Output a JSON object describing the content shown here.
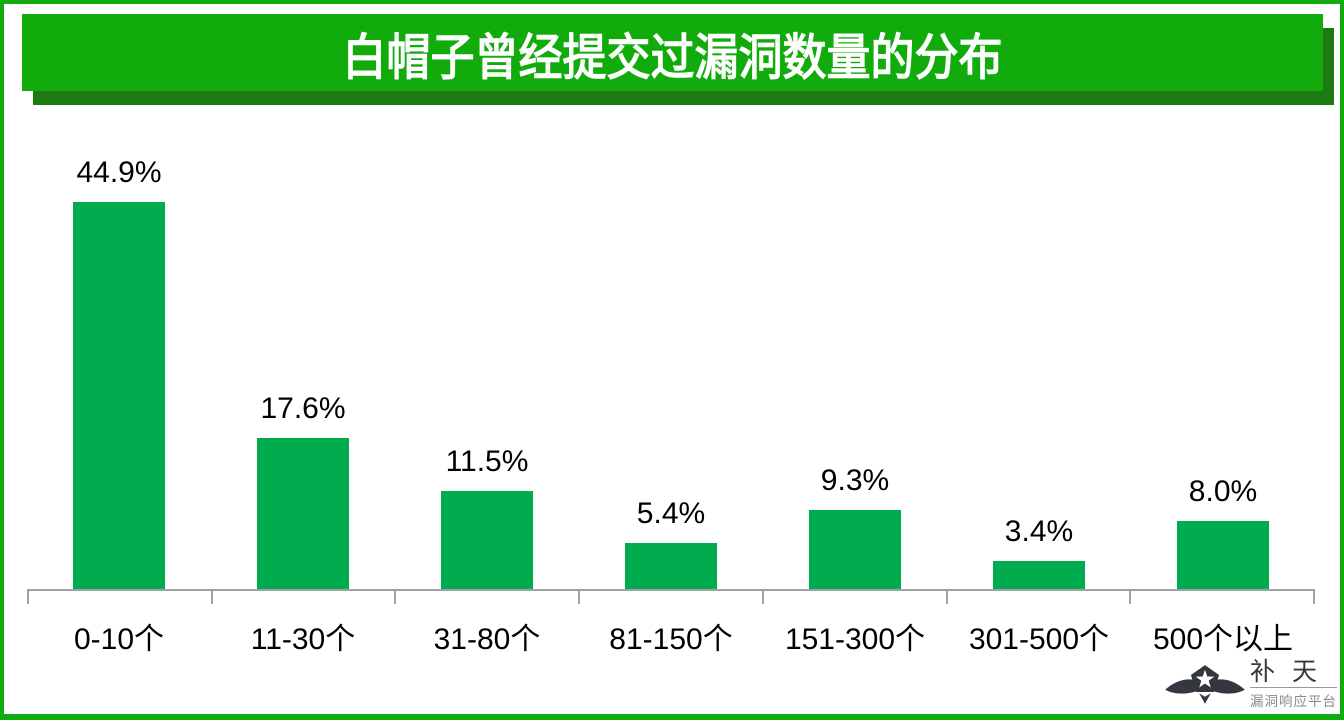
{
  "title": "白帽子曾经提交过漏洞数量的分布",
  "chart_data": {
    "type": "bar",
    "title": "白帽子曾经提交过漏洞数量的分布",
    "categories": [
      "0-10个",
      "11-30个",
      "31-80个",
      "81-150个",
      "151-300个",
      "301-500个",
      "500个以上"
    ],
    "values": [
      44.9,
      17.6,
      11.5,
      5.4,
      9.3,
      3.4,
      8.0
    ],
    "value_labels": [
      "44.9%",
      "17.6%",
      "11.5%",
      "5.4%",
      "9.3%",
      "3.4%",
      "8.0%"
    ],
    "xlabel": "",
    "ylabel": "",
    "ylim": [
      0,
      50
    ],
    "grid": false,
    "legend": false,
    "bar_color": "#00AC4E",
    "axis_color": "#9FA2A5",
    "label_color": "#000000"
  },
  "banner": {
    "background": "#12AB0C",
    "shadow": "#1B7A10",
    "text_color": "#FFFFFF"
  },
  "frame": {
    "border_color": "#12AB0C"
  },
  "logo": {
    "name": "补 天",
    "subtitle": "漏洞响应平台",
    "color_dark": "#34383E",
    "color_gray": "#8A8A8A"
  }
}
